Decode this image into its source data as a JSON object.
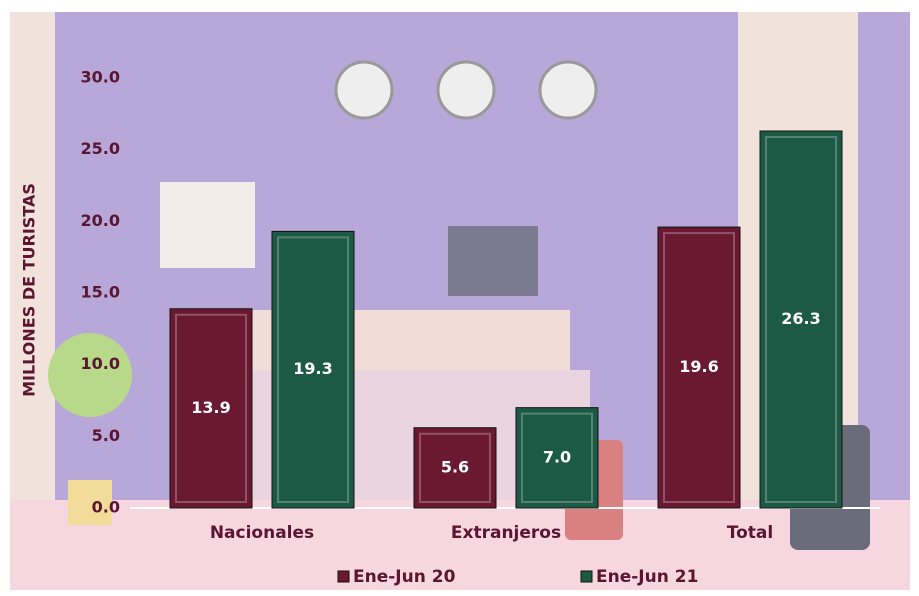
{
  "chart_data": {
    "type": "bar",
    "y_label": "MILLONES DE TURISTAS",
    "categories": [
      "Nacionales",
      "Extranjeros",
      "Total"
    ],
    "series": [
      {
        "name": "Ene-Jun 20",
        "color": "#6b1832",
        "values": [
          13.9,
          5.6,
          19.6
        ],
        "value_labels": [
          "13.9",
          "5.6",
          "19.6"
        ]
      },
      {
        "name": "Ene-Jun 21",
        "color": "#1d5a45",
        "values": [
          19.3,
          7.0,
          26.3
        ],
        "value_labels": [
          "19.3",
          "7.0",
          "26.3"
        ]
      }
    ],
    "ylim": [
      0,
      30
    ],
    "yticks": [
      {
        "value": 0,
        "label": "0.0"
      },
      {
        "value": 5,
        "label": "5.0"
      },
      {
        "value": 10,
        "label": "10.0"
      },
      {
        "value": 15,
        "label": "15.0"
      },
      {
        "value": 20,
        "label": "20.0"
      },
      {
        "value": 25,
        "label": "25.0"
      },
      {
        "value": 30,
        "label": "30.0"
      }
    ]
  }
}
